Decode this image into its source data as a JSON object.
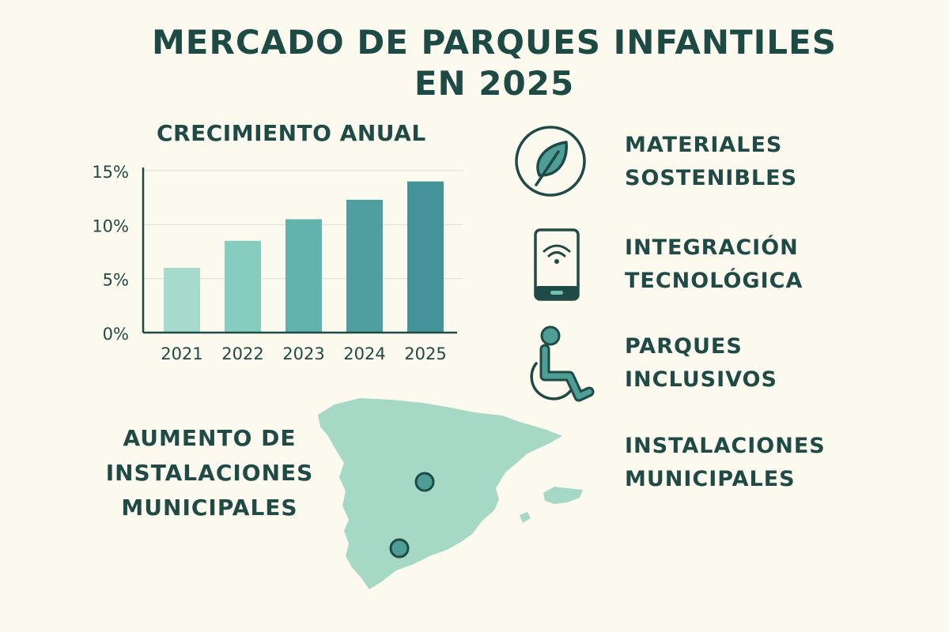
{
  "title_lines": [
    "MERCADO DE PARQUES INFANTILES",
    "EN 2025"
  ],
  "chart_data": {
    "type": "bar",
    "title": "CRECIMIENTO ANUAL",
    "categories": [
      "2021",
      "2022",
      "2023",
      "2024",
      "2025"
    ],
    "values": [
      6,
      8.5,
      10.5,
      12.3,
      14
    ],
    "yticks": [
      "0%",
      "5%",
      "10%",
      "15%"
    ],
    "ylim": [
      0,
      15
    ],
    "colors": [
      "#a6dacd",
      "#86ccbf",
      "#62b3ad",
      "#4f9fa0",
      "#44939a"
    ]
  },
  "features": [
    {
      "icon": "leaf-icon",
      "lines": [
        "MATERIALES",
        "SOSTENIBLES"
      ]
    },
    {
      "icon": "smartphone-wifi-icon",
      "lines": [
        "INTEGRACIÓN",
        "TECNOLÓGICA"
      ]
    },
    {
      "icon": "wheelchair-icon",
      "lines": [
        "PARQUES",
        "INCLUSIVOS"
      ]
    },
    {
      "icon": "none",
      "lines": [
        "INSTALACIONES",
        "MUNICIPALES"
      ]
    }
  ],
  "map": {
    "icon": "spain-map-icon",
    "label_lines": [
      "AUMENTO DE",
      "INSTALACIONES",
      "MUNICIPALES"
    ]
  },
  "colors": {
    "background": "#fcf9ef",
    "text": "#1f4a45",
    "accent": "#4f9d97",
    "map_fill": "#a6d8c6"
  }
}
